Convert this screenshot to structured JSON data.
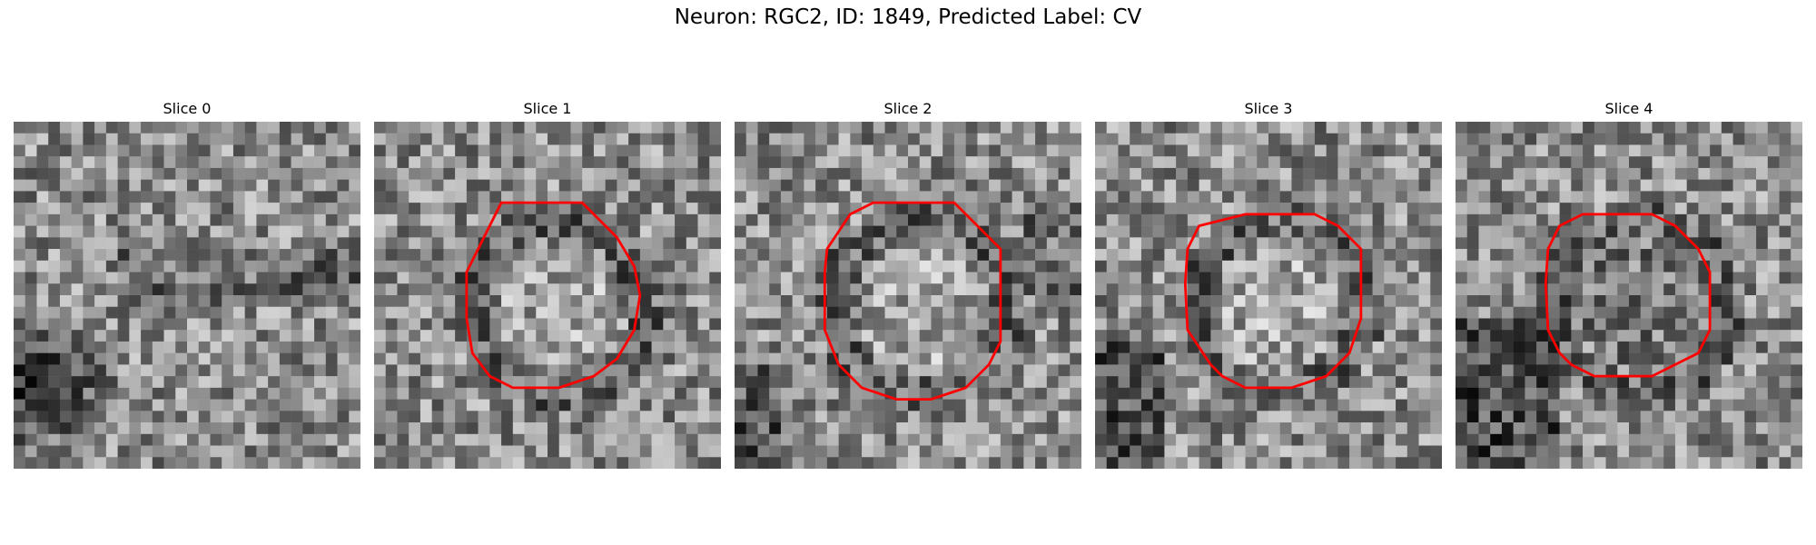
{
  "figure": {
    "title": "Neuron: RGC2, ID: 1849, Predicted Label: CV"
  },
  "panels": [
    {
      "title": "Slice 0",
      "seed": 11,
      "has_contour": false,
      "dark_blobs": "bottom-left dark mass; dark horizontal band across middle",
      "colormap": "gray"
    },
    {
      "title": "Slice 1",
      "seed": 23,
      "has_contour": true,
      "contour_color": "#ff0000",
      "colormap": "gray"
    },
    {
      "title": "Slice 2",
      "seed": 37,
      "has_contour": true,
      "contour_color": "#ff0000",
      "colormap": "gray"
    },
    {
      "title": "Slice 3",
      "seed": 41,
      "has_contour": true,
      "contour_color": "#ff0000",
      "colormap": "gray"
    },
    {
      "title": "Slice 4",
      "seed": 53,
      "has_contour": true,
      "contour_color": "#ff0000",
      "colormap": "gray"
    }
  ]
}
